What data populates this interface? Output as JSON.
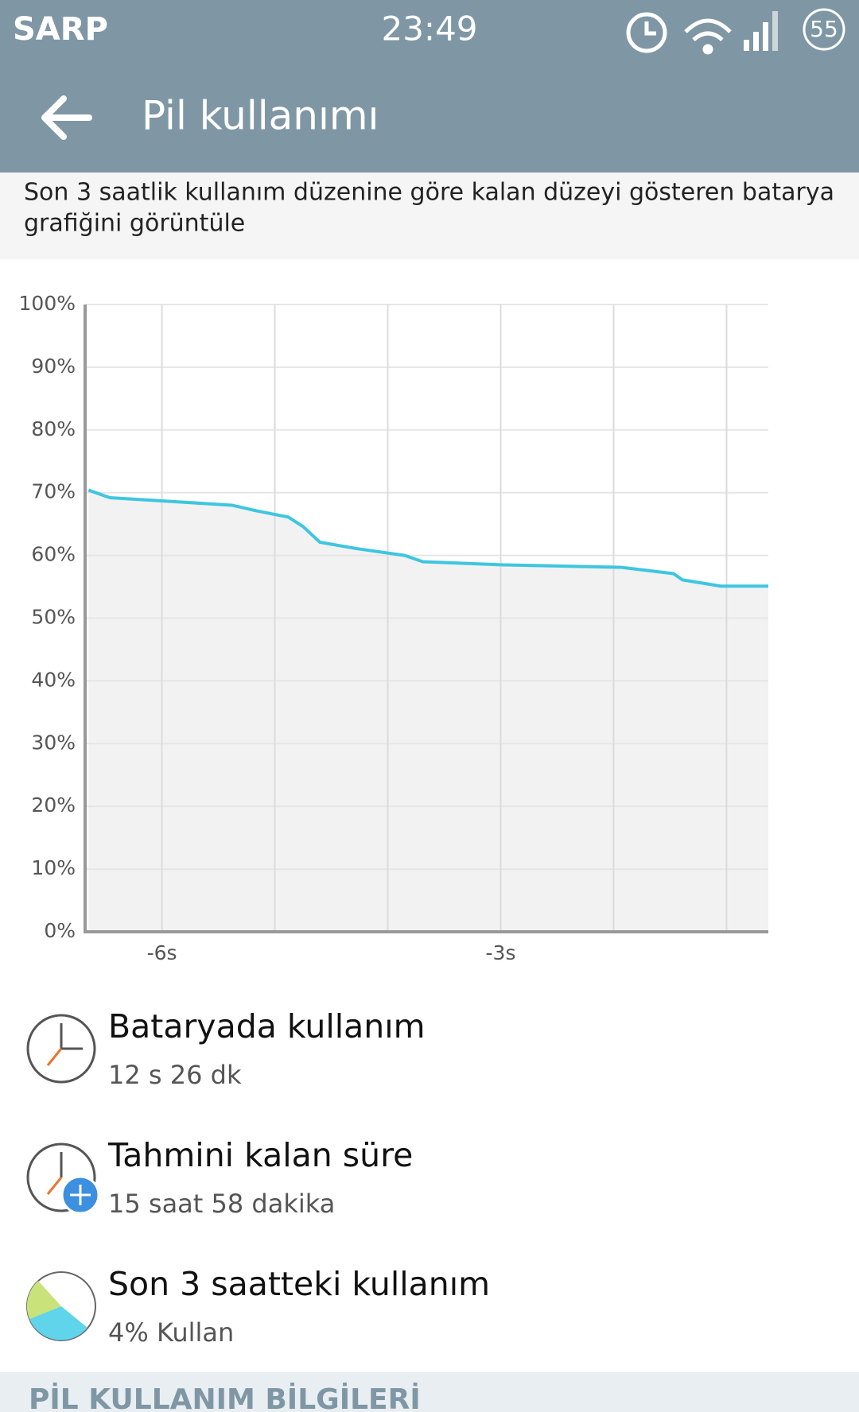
{
  "status_bar": {
    "carrier": "SARP",
    "time": "23:49",
    "battery": "55"
  },
  "app_bar": {
    "title": "Pil kullanımı"
  },
  "description": {
    "line1": "Son 3 saatlik kullanım düzenine göre kalan düzeyi gösteren batarya",
    "line2": "grafiğini görüntüle"
  },
  "chart_data": {
    "type": "area",
    "x": [
      -6.65,
      -6.46,
      -6.0,
      -5.38,
      -5.16,
      -4.88,
      -4.75,
      -4.6,
      -4.28,
      -3.85,
      -3.69,
      -3.0,
      -1.93,
      -1.47,
      -1.39,
      -1.05,
      -0.63
    ],
    "values": [
      70.4,
      69.2,
      68.7,
      68.0,
      67.1,
      66.1,
      64.6,
      62.1,
      61.1,
      60.0,
      59.0,
      58.5,
      58.1,
      57.1,
      56.1,
      55.1,
      55.1
    ],
    "color": "#3ec6e0",
    "fill": "#f2f2f2",
    "xlim": [
      -6.68,
      -0.63
    ],
    "xticks": [
      {
        "value": -6,
        "label": "-6s"
      },
      {
        "value": -5,
        "label": null
      },
      {
        "value": -4,
        "label": null
      },
      {
        "value": -3,
        "label": "-3s"
      },
      {
        "value": -2,
        "label": null
      },
      {
        "value": -1,
        "label": null
      }
    ],
    "ylim": [
      0,
      100
    ],
    "yticks": [
      {
        "value": 0,
        "label": "0%"
      },
      {
        "value": 10,
        "label": "10%"
      },
      {
        "value": 20,
        "label": "20%"
      },
      {
        "value": 30,
        "label": "30%"
      },
      {
        "value": 40,
        "label": "40%"
      },
      {
        "value": 50,
        "label": "50%"
      },
      {
        "value": 60,
        "label": "60%"
      },
      {
        "value": 70,
        "label": "70%"
      },
      {
        "value": 80,
        "label": "80%"
      },
      {
        "value": 90,
        "label": "90%"
      },
      {
        "value": 100,
        "label": "100%"
      }
    ],
    "grid": true
  },
  "items": [
    {
      "title": "Bataryada kullanım",
      "subtitle": "12 s 26 dk"
    },
    {
      "title": "Tahmini kalan süre",
      "subtitle": "15 saat 58 dakika"
    },
    {
      "title": "Son 3 saatteki kullanım",
      "subtitle": "4% Kullan"
    }
  ],
  "section_header": "PİL KULLANIM BİLGİLERİ"
}
